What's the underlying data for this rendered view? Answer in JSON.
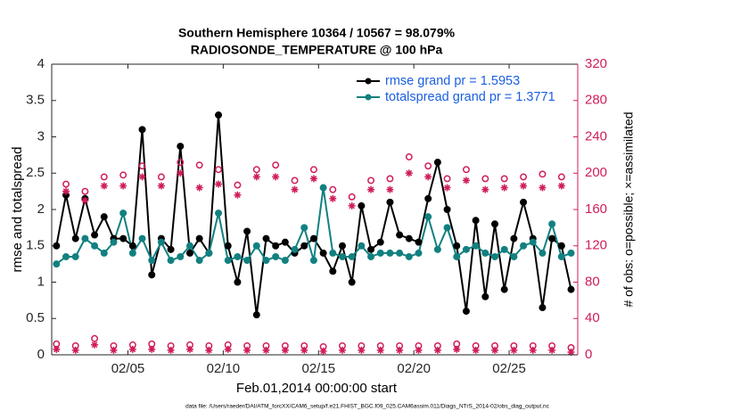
{
  "chart_data": {
    "type": "line",
    "title_lines": [
      "Southern Hemisphere 10364 / 10567 = 98.079%",
      "RADIOSONDE_TEMPERATURE @ 100 hPa"
    ],
    "xlabel": "Feb.01,2014 00:00:00 start",
    "ylabel": "rmse and totalspread",
    "y2label": "# of obs: o=possible; ×=assimilated",
    "footnote": "data file: /Users/raeder/DAI/ATM_forcXX/CAM6_setup/f.e21.FHIST_BGC.f09_025.CAM6assim.011/Diags_NTrS_2014-02/obs_diag_output.nc",
    "legend": "upper right",
    "legend_text_color": "#1a5fe0",
    "xlim": [
      0,
      27.6
    ],
    "xticks": [
      {
        "value": 4,
        "label": "02/05"
      },
      {
        "value": 9,
        "label": "02/10"
      },
      {
        "value": 14,
        "label": "02/15"
      },
      {
        "value": 19,
        "label": "02/20"
      },
      {
        "value": 24,
        "label": "02/25"
      }
    ],
    "ylim": [
      0,
      4
    ],
    "yticks": [
      0,
      0.5,
      1,
      1.5,
      2,
      2.5,
      3,
      3.5,
      4
    ],
    "y2lim": [
      0,
      320
    ],
    "y2ticks": [
      0,
      40,
      80,
      120,
      160,
      200,
      240,
      280,
      320
    ],
    "y2_color": "#d01c5c",
    "x": [
      0.25,
      0.75,
      1.25,
      1.75,
      2.25,
      2.75,
      3.25,
      3.75,
      4.25,
      4.75,
      5.25,
      5.75,
      6.25,
      6.75,
      7.25,
      7.75,
      8.25,
      8.75,
      9.25,
      9.75,
      10.25,
      10.75,
      11.25,
      11.75,
      12.25,
      12.75,
      13.25,
      13.75,
      14.25,
      14.75,
      15.25,
      15.75,
      16.25,
      16.75,
      17.25,
      17.75,
      18.25,
      18.75,
      19.25,
      19.75,
      20.25,
      20.75,
      21.25,
      21.75,
      22.25,
      22.75,
      23.25,
      23.75,
      24.25,
      24.75,
      25.25,
      25.75,
      26.25,
      26.75,
      27.25
    ],
    "series": [
      {
        "name": "rmse grand pr = 1.5953",
        "color": "#000000",
        "marker": "dot",
        "values": [
          1.5,
          2.2,
          1.6,
          2.15,
          1.65,
          1.9,
          1.6,
          1.6,
          1.5,
          3.1,
          1.1,
          1.6,
          1.45,
          2.87,
          1.4,
          1.6,
          1.4,
          3.3,
          1.5,
          1.0,
          1.7,
          0.55,
          1.6,
          1.5,
          1.55,
          1.4,
          1.5,
          1.6,
          1.4,
          1.15,
          1.5,
          1.0,
          2.05,
          1.45,
          1.55,
          2.1,
          1.65,
          1.6,
          1.55,
          2.15,
          2.65,
          2.0,
          1.5,
          0.6,
          1.85,
          0.8,
          1.8,
          0.9,
          1.6,
          2.1,
          1.6,
          0.65,
          1.6,
          1.5,
          0.9
        ]
      },
      {
        "name": "totalspread grand pr = 1.3771",
        "color": "#128080",
        "marker": "dot",
        "values": [
          1.25,
          1.35,
          1.35,
          1.6,
          1.5,
          1.4,
          1.55,
          1.95,
          1.4,
          1.6,
          1.3,
          1.55,
          1.3,
          1.35,
          1.5,
          1.3,
          1.4,
          1.95,
          1.3,
          1.35,
          1.3,
          1.5,
          1.3,
          1.35,
          1.3,
          1.45,
          1.75,
          1.3,
          2.3,
          1.4,
          1.35,
          1.35,
          1.5,
          1.35,
          1.4,
          1.4,
          1.4,
          1.35,
          1.4,
          1.9,
          1.45,
          1.75,
          1.35,
          1.45,
          1.5,
          1.4,
          1.35,
          1.45,
          1.35,
          1.5,
          1.55,
          1.4,
          1.8,
          1.35,
          1.4
        ]
      },
      {
        "axis": "y2",
        "color": "#d01c5c",
        "marker": "circle",
        "values": [
          8,
          184,
          6,
          176,
          14,
          192,
          6,
          194,
          7,
          204,
          8,
          192,
          6,
          208,
          7,
          205,
          6,
          200,
          7,
          183,
          6,
          200,
          6,
          205,
          6,
          188,
          6,
          200,
          5,
          178,
          6,
          170,
          6,
          188,
          6,
          190,
          6,
          214,
          6,
          204,
          6,
          190,
          8,
          200,
          6,
          190,
          6,
          190,
          6,
          192,
          6,
          195,
          6,
          192,
          4
        ]
      },
      {
        "axis": "y2",
        "color": "#d01c5c",
        "marker": "asterisk",
        "values": [
          6,
          180,
          5,
          170,
          11,
          186,
          5,
          186,
          6,
          196,
          6,
          186,
          5,
          200,
          6,
          184,
          5,
          188,
          6,
          176,
          5,
          196,
          5,
          196,
          5,
          182,
          5,
          194,
          4,
          172,
          5,
          164,
          5,
          182,
          5,
          182,
          5,
          200,
          5,
          196,
          5,
          184,
          6,
          192,
          5,
          182,
          5,
          184,
          5,
          186,
          5,
          184,
          5,
          186,
          3
        ]
      }
    ]
  }
}
